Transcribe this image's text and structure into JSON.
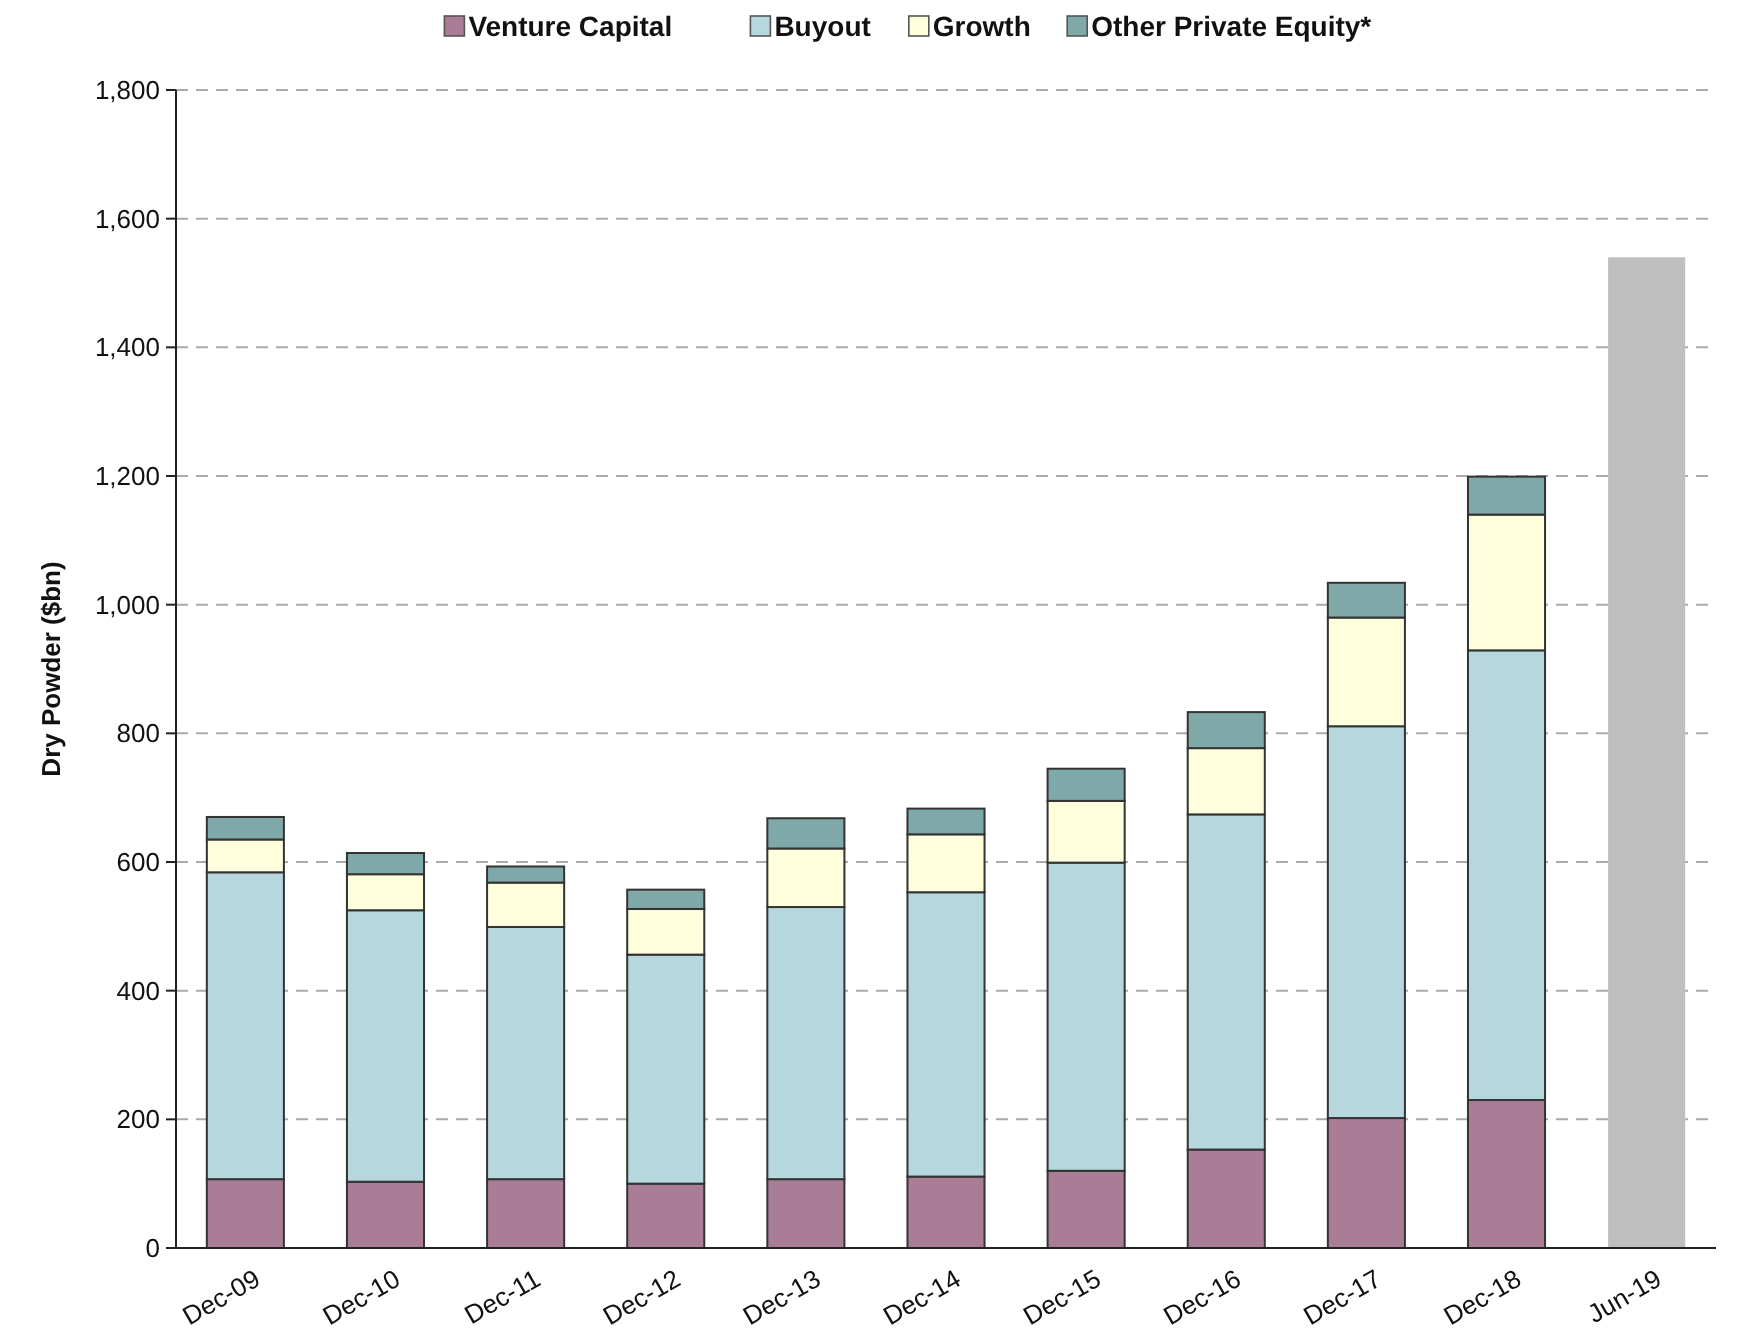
{
  "chart_data": {
    "type": "bar",
    "stacked": true,
    "ylabel": "Dry Powder ($bn)",
    "categories": [
      "Dec-09",
      "Dec-10",
      "Dec-11",
      "Dec-12",
      "Dec-13",
      "Dec-14",
      "Dec-15",
      "Dec-16",
      "Dec-17",
      "Dec-18",
      "Jun-19"
    ],
    "series": [
      {
        "name": "Venture Capital",
        "color": "#a97d96",
        "values": [
          107,
          103,
          107,
          100,
          107,
          111,
          120,
          153,
          202,
          230,
          null
        ]
      },
      {
        "name": "Buyout",
        "color": "#b5d7dd",
        "values": [
          477,
          422,
          392,
          356,
          423,
          442,
          479,
          521,
          609,
          699,
          null
        ]
      },
      {
        "name": "Growth",
        "color": "#ffffdd",
        "values": [
          51,
          56,
          69,
          71,
          91,
          90,
          96,
          103,
          169,
          211,
          null
        ]
      },
      {
        "name": "Other Private Equity*",
        "color": "#7fa9a9",
        "values": [
          35,
          33,
          25,
          30,
          47,
          40,
          50,
          56,
          54,
          59,
          null
        ]
      },
      {
        "color": "#bfbfbf",
        "values": [
          null,
          null,
          null,
          null,
          null,
          null,
          null,
          null,
          null,
          null,
          1540
        ]
      }
    ],
    "ylim": [
      0,
      1800
    ],
    "yticks": [
      0,
      {
        "value": 200,
        "label": "200"
      },
      {
        "value": 400,
        "label": "400"
      },
      {
        "value": 600,
        "label": "600"
      },
      {
        "value": 800,
        "label": "800"
      },
      {
        "value": 1000,
        "label": "1,000"
      },
      {
        "value": 1200,
        "label": "1,200"
      },
      {
        "value": 1400,
        "label": "1,400"
      },
      {
        "value": 1600,
        "label": "1,600"
      },
      {
        "value": 1800,
        "label": "1,800"
      }
    ],
    "grid": "y",
    "legend": "top"
  }
}
